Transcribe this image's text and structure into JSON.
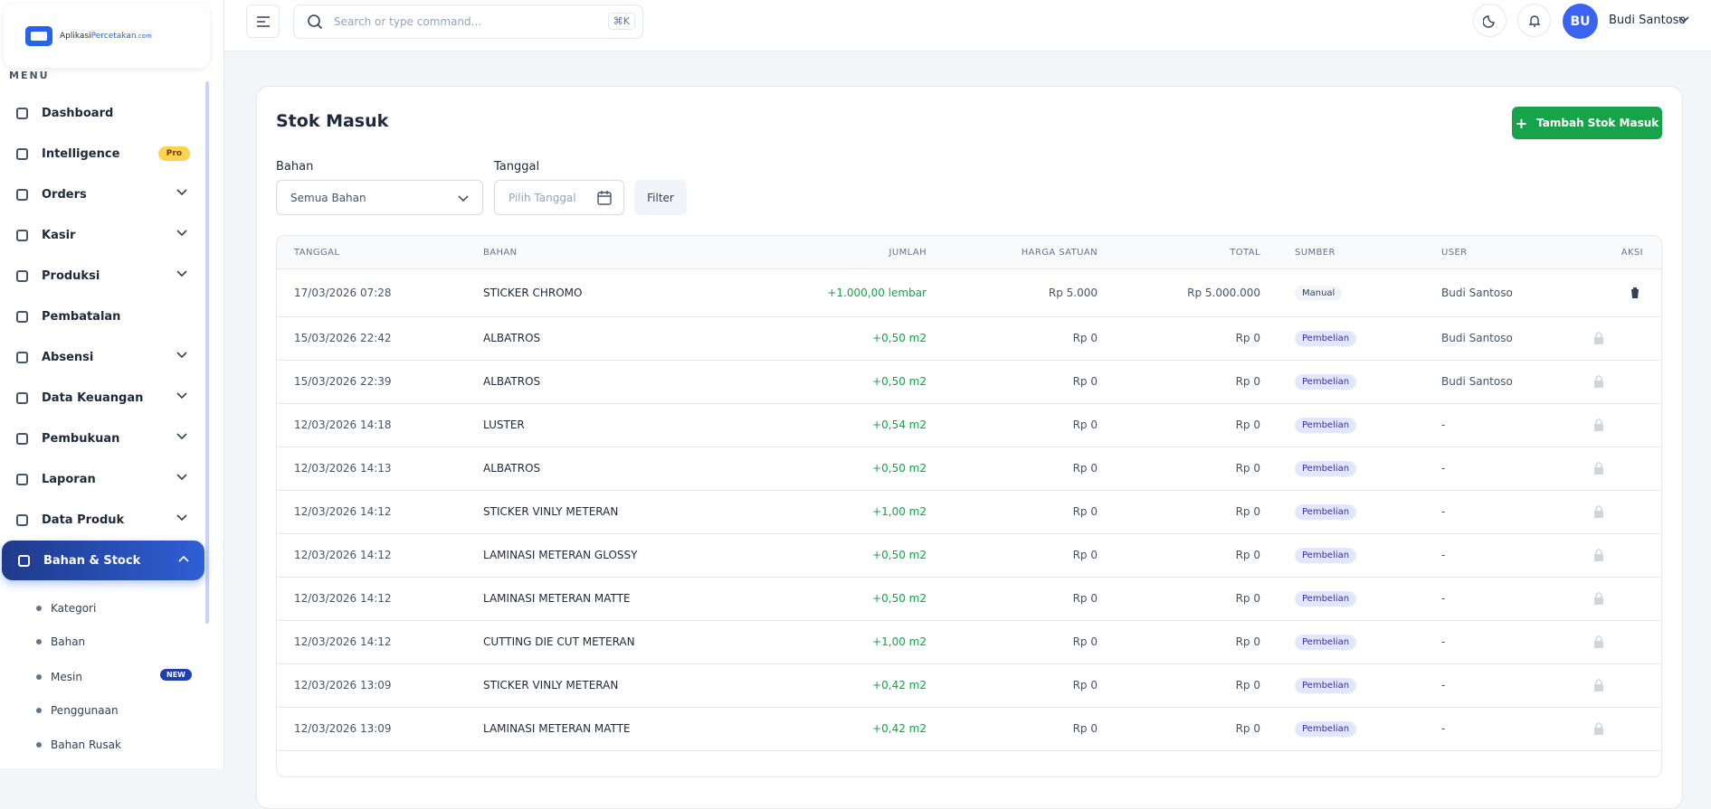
{
  "brand": {
    "part1": "Aplikasi",
    "part2": "Percetakan",
    "suffix": ".com"
  },
  "sidebar": {
    "section": "MENU",
    "items": [
      {
        "label": "Dashboard",
        "expandable": false
      },
      {
        "label": "Intelligence",
        "expandable": false,
        "badge": "Pro"
      },
      {
        "label": "Orders",
        "expandable": true
      },
      {
        "label": "Kasir",
        "expandable": true
      },
      {
        "label": "Produksi",
        "expandable": true
      },
      {
        "label": "Pembatalan",
        "expandable": false
      },
      {
        "label": "Absensi",
        "expandable": true
      },
      {
        "label": "Data Keuangan",
        "expandable": true
      },
      {
        "label": "Pembukuan",
        "expandable": true
      },
      {
        "label": "Laporan",
        "expandable": true
      },
      {
        "label": "Data Produk",
        "expandable": true
      },
      {
        "label": "Bahan & Stock",
        "expandable": true,
        "active": true
      }
    ],
    "subitems": [
      {
        "label": "Kategori"
      },
      {
        "label": "Bahan"
      },
      {
        "label": "Mesin",
        "badge": "NEW"
      },
      {
        "label": "Penggunaan"
      },
      {
        "label": "Bahan Rusak"
      }
    ]
  },
  "topbar": {
    "search_placeholder": "Search or type command...",
    "shortcut": "⌘K",
    "avatar": "BU",
    "user": "Budi Santoso"
  },
  "page": {
    "title": "Stok Masuk",
    "add_button": "Tambah Stok Masuk",
    "filters": {
      "bahan_label": "Bahan",
      "bahan_value": "Semua Bahan",
      "tanggal_label": "Tanggal",
      "tanggal_placeholder": "Pilih Tanggal",
      "button": "Filter"
    }
  },
  "table": {
    "headers": [
      "TANGGAL",
      "BAHAN",
      "JUMLAH",
      "HARGA SATUAN",
      "TOTAL",
      "SUMBER",
      "USER",
      "AKSI"
    ],
    "rows": [
      [
        "17/03/2026 07:28",
        "STICKER CHROMO",
        "+1.000,00 lembar",
        "Rp 5.000",
        "Rp 5.000.000",
        "Manual",
        "Budi Santoso"
      ],
      [
        "15/03/2026 22:42",
        "ALBATROS",
        "+0,50 m2",
        "Rp 0",
        "Rp 0",
        "Pembelian",
        "Budi Santoso"
      ],
      [
        "15/03/2026 22:39",
        "ALBATROS",
        "+0,50 m2",
        "Rp 0",
        "Rp 0",
        "Pembelian",
        "Budi Santoso"
      ],
      [
        "12/03/2026 14:18",
        "LUSTER",
        "+0,54 m2",
        "Rp 0",
        "Rp 0",
        "Pembelian",
        "-"
      ],
      [
        "12/03/2026 14:13",
        "ALBATROS",
        "+0,50 m2",
        "Rp 0",
        "Rp 0",
        "Pembelian",
        "-"
      ],
      [
        "12/03/2026 14:12",
        "STICKER VINLY METERAN",
        "+1,00 m2",
        "Rp 0",
        "Rp 0",
        "Pembelian",
        "-"
      ],
      [
        "12/03/2026 14:12",
        "LAMINASI METERAN GLOSSY",
        "+0,50 m2",
        "Rp 0",
        "Rp 0",
        "Pembelian",
        "-"
      ],
      [
        "12/03/2026 14:12",
        "LAMINASI METERAN MATTE",
        "+0,50 m2",
        "Rp 0",
        "Rp 0",
        "Pembelian",
        "-"
      ],
      [
        "12/03/2026 14:12",
        "CUTTING DIE CUT METERAN",
        "+1,00 m2",
        "Rp 0",
        "Rp 0",
        "Pembelian",
        "-"
      ],
      [
        "12/03/2026 13:09",
        "STICKER VINLY METERAN",
        "+0,42 m2",
        "Rp 0",
        "Rp 0",
        "Pembelian",
        "-"
      ],
      [
        "12/03/2026 13:09",
        "LAMINASI METERAN MATTE",
        "+0,42 m2",
        "Rp 0",
        "Rp 0",
        "Pembelian",
        "-"
      ]
    ]
  }
}
